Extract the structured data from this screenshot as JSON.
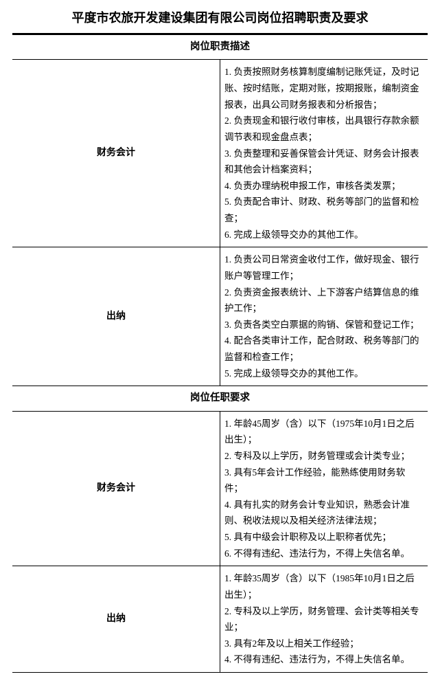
{
  "title": "平度市农旅开发建设集团有限公司岗位招聘职责及要求",
  "section1": {
    "heading": "岗位职责描述"
  },
  "section2": {
    "heading": "岗位任职要求"
  },
  "roles": {
    "fa": "财务会计",
    "cn": "出纳"
  },
  "duties": {
    "fa": [
      "1. 负责按照财务核算制度编制记账凭证，及时记账、按时结账，定期对账，按期报账，编制资金报表，出具公司财务报表和分析报告；",
      "2. 负责现金和银行收付审核，出具银行存款余额调节表和现金盘点表；",
      "3. 负责整理和妥善保管会计凭证、财务会计报表和其他会计档案资料；",
      "4. 负责办理纳税申报工作，审核各类发票；",
      "5. 负责配合审计、财政、税务等部门的监督和检查；",
      "6. 完成上级领导交办的其他工作。"
    ],
    "cn": [
      "1. 负责公司日常资金收付工作，做好现金、银行账户等管理工作；",
      "2. 负责资金报表统计、上下游客户结算信息的维护工作；",
      "3. 负责各类空白票据的购销、保管和登记工作；",
      "4. 配合各类审计工作，配合财政、税务等部门的监督和检查工作；",
      "5. 完成上级领导交办的其他工作。"
    ]
  },
  "reqs": {
    "fa": [
      "1. 年龄45周岁（含）以下（1975年10月1日之后出生）；",
      "2. 专科及以上学历，财务管理或会计类专业；",
      "3. 具有5年会计工作经验，能熟练使用财务软件；",
      "4. 具有扎实的财务会计专业知识，熟悉会计准则、税收法规以及相关经济法律法规；",
      "5. 具有中级会计职称及以上职称者优先；",
      "6. 不得有违纪、违法行为，不得上失信名单。"
    ],
    "cn": [
      "1. 年龄35周岁（含）以下（1985年10月1日之后出生）；",
      "2. 专科及以上学历，财务管理、会计类等相关专业；",
      "3. 具有2年及以上相关工作经验；",
      "4. 不得有违纪、违法行为，不得上失信名单。"
    ]
  }
}
